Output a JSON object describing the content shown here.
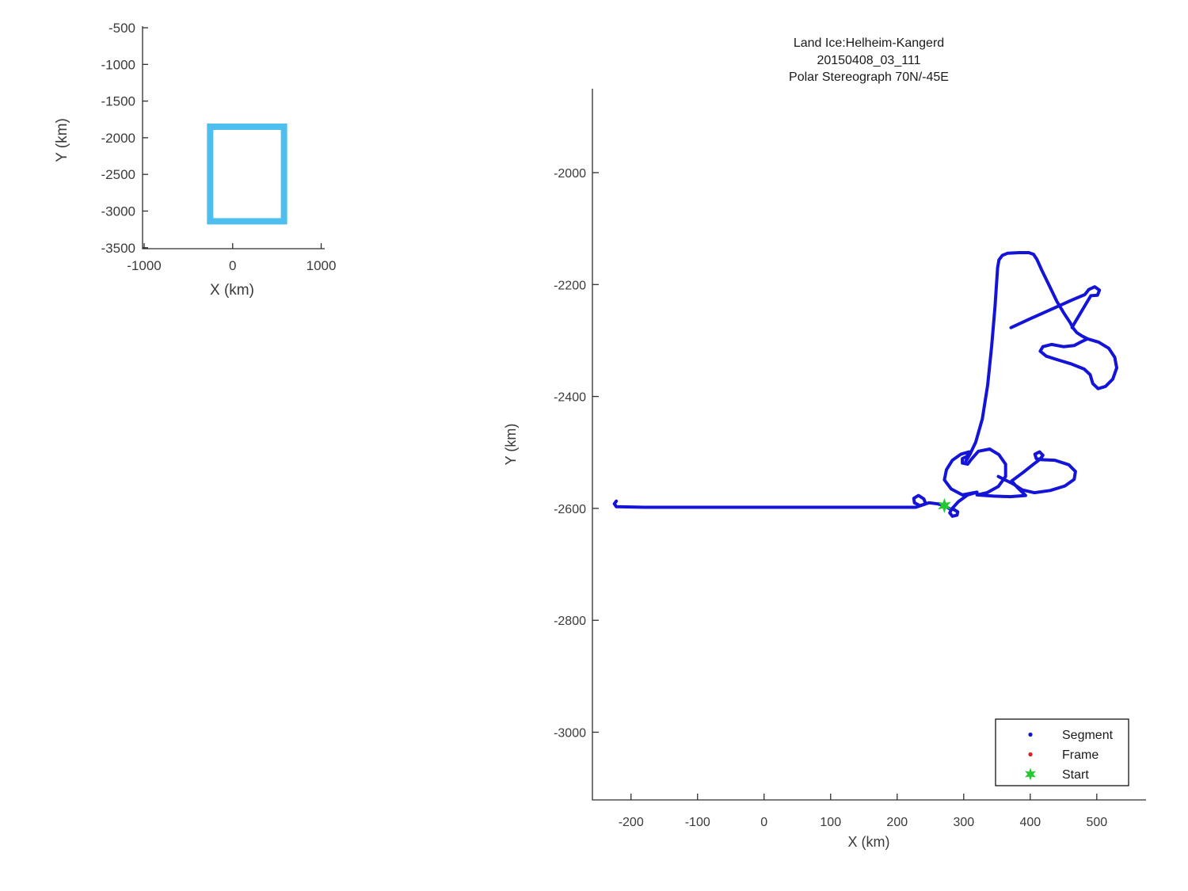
{
  "window": {
    "background": "#ffffff"
  },
  "title": {
    "lines": [
      "Land Ice:Helheim-Kangerd",
      "20150408_03_111",
      "Polar Stereograph 70N/-45E"
    ]
  },
  "colors": {
    "track": "#1414d8",
    "frame": "#e02020",
    "start": "#24c832",
    "coverage_rect": "#4dbeee",
    "axis": "#2e2e2e",
    "text": "#3a3a3a"
  },
  "legend": {
    "items": [
      {
        "label": "Segment",
        "marker": "dot",
        "color": "#1414d8"
      },
      {
        "label": "Frame",
        "marker": "dot",
        "color": "#e02020"
      },
      {
        "label": "Start",
        "marker": "hexagram",
        "color": "#24c832"
      }
    ]
  },
  "chart_data": {
    "type": "line",
    "main": {
      "xlabel": "X (km)",
      "ylabel": "Y (km)",
      "xlim": [
        -258,
        574
      ],
      "ylim": [
        -3121,
        -1850
      ],
      "xticks": [
        -200,
        -100,
        0,
        100,
        200,
        300,
        400,
        500
      ],
      "yticks": [
        -2000,
        -2200,
        -2400,
        -2600,
        -2800,
        -3000
      ],
      "start_point": [
        271,
        -2595
      ],
      "tracks": [
        [
          [
            -222,
            -2587
          ],
          [
            -225,
            -2592
          ],
          [
            -222,
            -2597
          ],
          [
            -180,
            -2598
          ],
          [
            -120,
            -2598
          ],
          [
            -60,
            -2598
          ],
          [
            0,
            -2598
          ],
          [
            60,
            -2598
          ],
          [
            120,
            -2598
          ],
          [
            180,
            -2598
          ],
          [
            228,
            -2598
          ],
          [
            243,
            -2592
          ],
          [
            240,
            -2583
          ],
          [
            232,
            -2577
          ],
          [
            225,
            -2582
          ],
          [
            226,
            -2590
          ],
          [
            234,
            -2595
          ],
          [
            248,
            -2590
          ],
          [
            261,
            -2592
          ],
          [
            271,
            -2595
          ],
          [
            279,
            -2601
          ],
          [
            285,
            -2602
          ],
          [
            291,
            -2606
          ],
          [
            290,
            -2612
          ],
          [
            283,
            -2614
          ],
          [
            279,
            -2608
          ],
          [
            282,
            -2601
          ],
          [
            292,
            -2588
          ],
          [
            306,
            -2576
          ],
          [
            320,
            -2571
          ],
          [
            298,
            -2576
          ],
          [
            281,
            -2565
          ],
          [
            271,
            -2549
          ],
          [
            274,
            -2531
          ],
          [
            283,
            -2514
          ],
          [
            296,
            -2503
          ],
          [
            308,
            -2499
          ],
          [
            305,
            -2507
          ],
          [
            298,
            -2511
          ],
          [
            298,
            -2519
          ],
          [
            306,
            -2521
          ],
          [
            311,
            -2513
          ],
          [
            322,
            -2498
          ],
          [
            339,
            -2494
          ],
          [
            353,
            -2504
          ],
          [
            363,
            -2521
          ],
          [
            363,
            -2543
          ],
          [
            352,
            -2561
          ],
          [
            335,
            -2572
          ],
          [
            320,
            -2576
          ],
          [
            345,
            -2578
          ],
          [
            370,
            -2579
          ],
          [
            393,
            -2577
          ],
          [
            381,
            -2563
          ],
          [
            372,
            -2551
          ],
          [
            389,
            -2536
          ],
          [
            405,
            -2521
          ],
          [
            415,
            -2512
          ],
          [
            419,
            -2505
          ],
          [
            414,
            -2499
          ],
          [
            407,
            -2503
          ],
          [
            409,
            -2511
          ],
          [
            417,
            -2513
          ],
          [
            437,
            -2514
          ],
          [
            458,
            -2522
          ],
          [
            468,
            -2534
          ],
          [
            466,
            -2548
          ],
          [
            452,
            -2560
          ],
          [
            430,
            -2568
          ],
          [
            406,
            -2572
          ],
          [
            388,
            -2567
          ],
          [
            374,
            -2556
          ],
          [
            362,
            -2549
          ],
          [
            352,
            -2543
          ]
        ],
        [
          [
            303,
            -2516
          ],
          [
            309,
            -2504
          ],
          [
            318,
            -2482
          ],
          [
            328,
            -2440
          ],
          [
            336,
            -2380
          ],
          [
            342,
            -2310
          ],
          [
            347,
            -2240
          ],
          [
            351,
            -2170
          ],
          [
            353,
            -2156
          ],
          [
            358,
            -2148
          ],
          [
            366,
            -2144
          ],
          [
            383,
            -2143
          ],
          [
            398,
            -2143
          ],
          [
            405,
            -2146
          ],
          [
            410,
            -2155
          ],
          [
            418,
            -2176
          ],
          [
            429,
            -2203
          ],
          [
            440,
            -2230
          ],
          [
            451,
            -2252
          ],
          [
            460,
            -2268
          ],
          [
            464,
            -2277
          ],
          [
            470,
            -2286
          ],
          [
            478,
            -2292
          ],
          [
            486,
            -2297
          ],
          [
            503,
            -2303
          ],
          [
            518,
            -2314
          ],
          [
            527,
            -2330
          ],
          [
            530,
            -2349
          ],
          [
            524,
            -2369
          ],
          [
            513,
            -2382
          ],
          [
            502,
            -2386
          ],
          [
            494,
            -2377
          ],
          [
            490,
            -2361
          ],
          [
            481,
            -2351
          ],
          [
            462,
            -2342
          ],
          [
            440,
            -2334
          ],
          [
            424,
            -2328
          ],
          [
            415,
            -2319
          ],
          [
            419,
            -2311
          ],
          [
            432,
            -2307
          ],
          [
            450,
            -2311
          ],
          [
            466,
            -2309
          ],
          [
            477,
            -2302
          ],
          [
            486,
            -2297
          ]
        ],
        [
          [
            371,
            -2277
          ],
          [
            400,
            -2261
          ],
          [
            432,
            -2244
          ],
          [
            462,
            -2228
          ],
          [
            482,
            -2218
          ],
          [
            488,
            -2209
          ],
          [
            497,
            -2204
          ],
          [
            504,
            -2210
          ],
          [
            501,
            -2219
          ],
          [
            491,
            -2220
          ],
          [
            482,
            -2238
          ],
          [
            472,
            -2258
          ],
          [
            465,
            -2272
          ],
          [
            463,
            -2277
          ]
        ]
      ]
    },
    "inset": {
      "xlabel": "X (km)",
      "ylabel": "Y (km)",
      "xlim": [
        -1018,
        1040
      ],
      "ylim": [
        -3513,
        -478
      ],
      "xticks": [
        -1000,
        0,
        1000
      ],
      "yticks": [
        -500,
        -1000,
        -1500,
        -2000,
        -2500,
        -3000,
        -3500
      ],
      "coverage_rect": {
        "x": [
          -255,
          580
        ],
        "y": [
          -3140,
          -1850
        ]
      }
    }
  }
}
